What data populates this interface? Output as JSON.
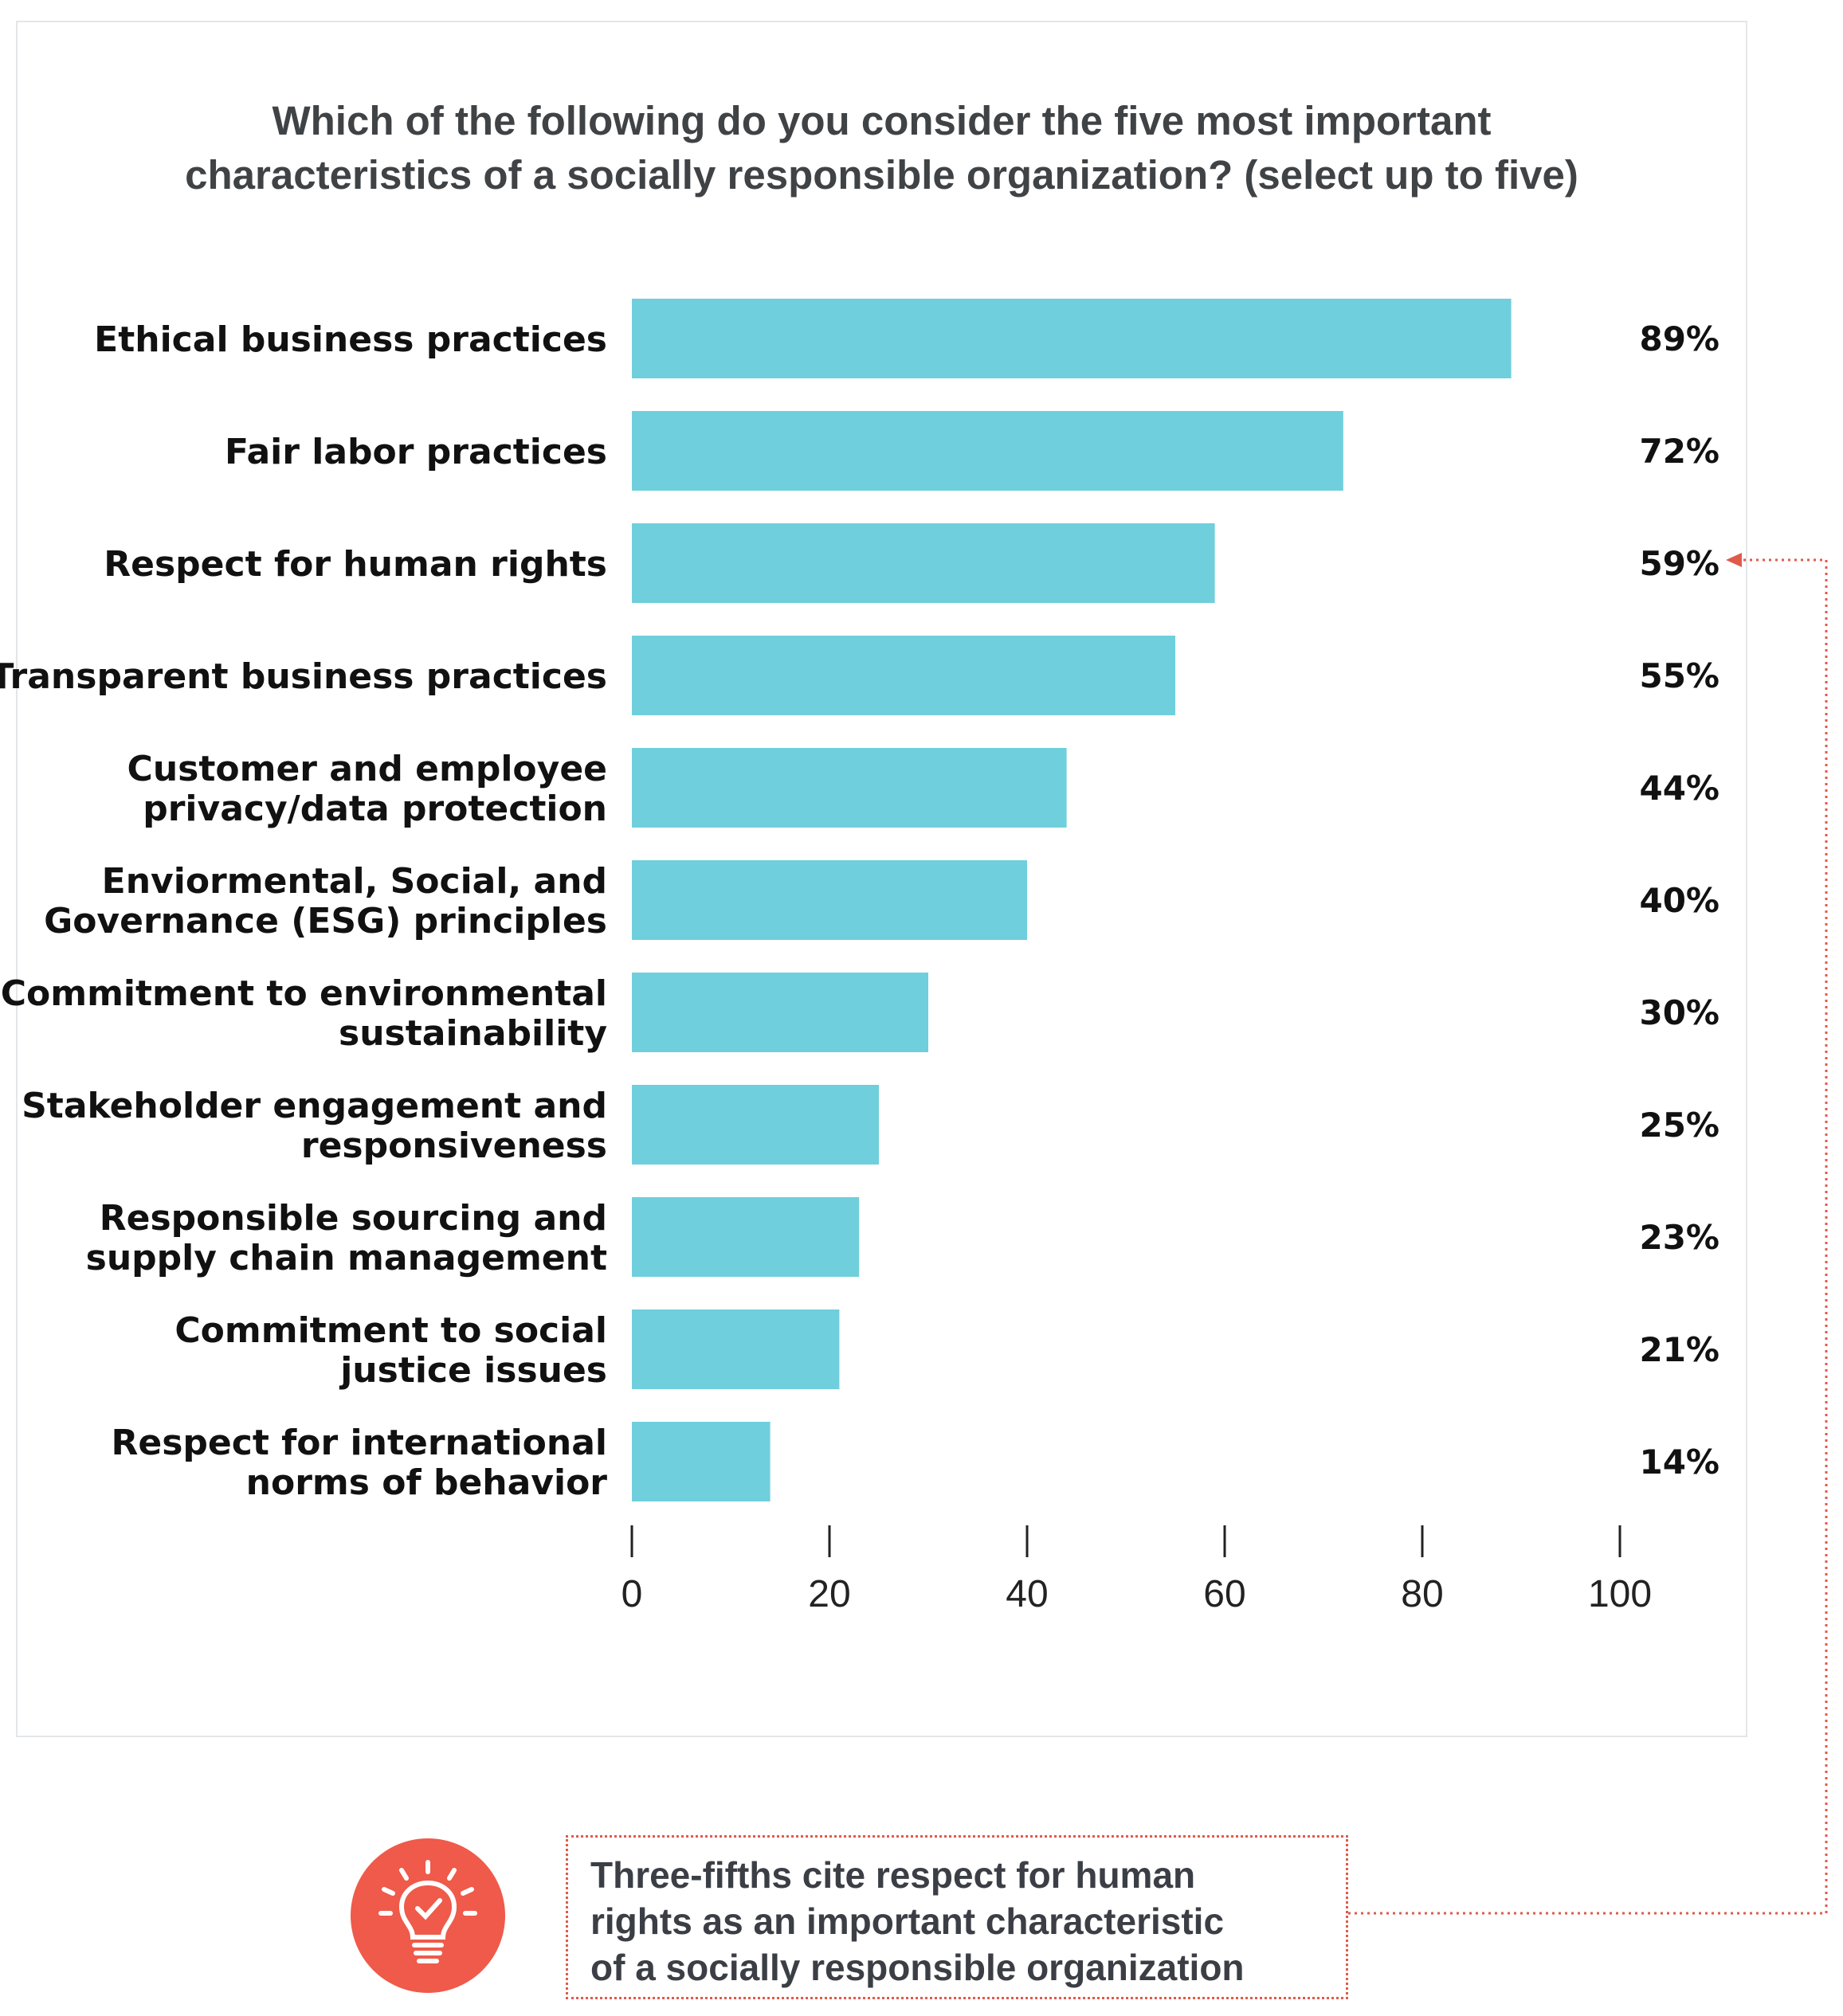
{
  "chart_data": {
    "type": "bar",
    "orientation": "horizontal",
    "title": "Which of the following do you consider the five most important characteristics of a socially responsible organization? (select up to five)",
    "title_lines": [
      "Which of the following do you consider the five most important",
      "characteristics of a socially responsible organization? (select up to five)"
    ],
    "categories": [
      [
        "Ethical business practices"
      ],
      [
        "Fair labor practices"
      ],
      [
        "Respect for human rights"
      ],
      [
        "Transparent business practices"
      ],
      [
        "Customer and employee",
        "privacy/data protection"
      ],
      [
        "Enviormental, Social, and",
        "Governance (ESG) principles"
      ],
      [
        "Commitment to environmental",
        "sustainability"
      ],
      [
        "Stakeholder engagement and",
        "responsiveness"
      ],
      [
        "Responsible sourcing and",
        "supply chain management"
      ],
      [
        "Commitment to social",
        "justice issues"
      ],
      [
        "Respect for international",
        "norms of behavior"
      ]
    ],
    "values": [
      89,
      72,
      59,
      55,
      44,
      40,
      30,
      25,
      23,
      21,
      14
    ],
    "value_labels": [
      "89%",
      "72%",
      "59%",
      "55%",
      "44%",
      "40%",
      "30%",
      "25%",
      "23%",
      "21%",
      "14%"
    ],
    "xlim": [
      0,
      100
    ],
    "x_ticks": [
      0,
      20,
      40,
      60,
      80,
      100
    ],
    "x_tick_labels": [
      "0",
      "20",
      "40",
      "60",
      "80",
      "100"
    ],
    "grid": false,
    "highlighted_index": 2
  },
  "callout": {
    "lines": [
      "Three-fifths cite respect for human",
      "rights as an important characteristic",
      "of a socially responsible organization"
    ],
    "icon": "lightbulb-check-icon"
  },
  "colors": {
    "bar": "#6fcfdc",
    "accent": "#ef5a4a",
    "title": "#404346",
    "text": "#111111",
    "connector": "#e05a4b"
  }
}
